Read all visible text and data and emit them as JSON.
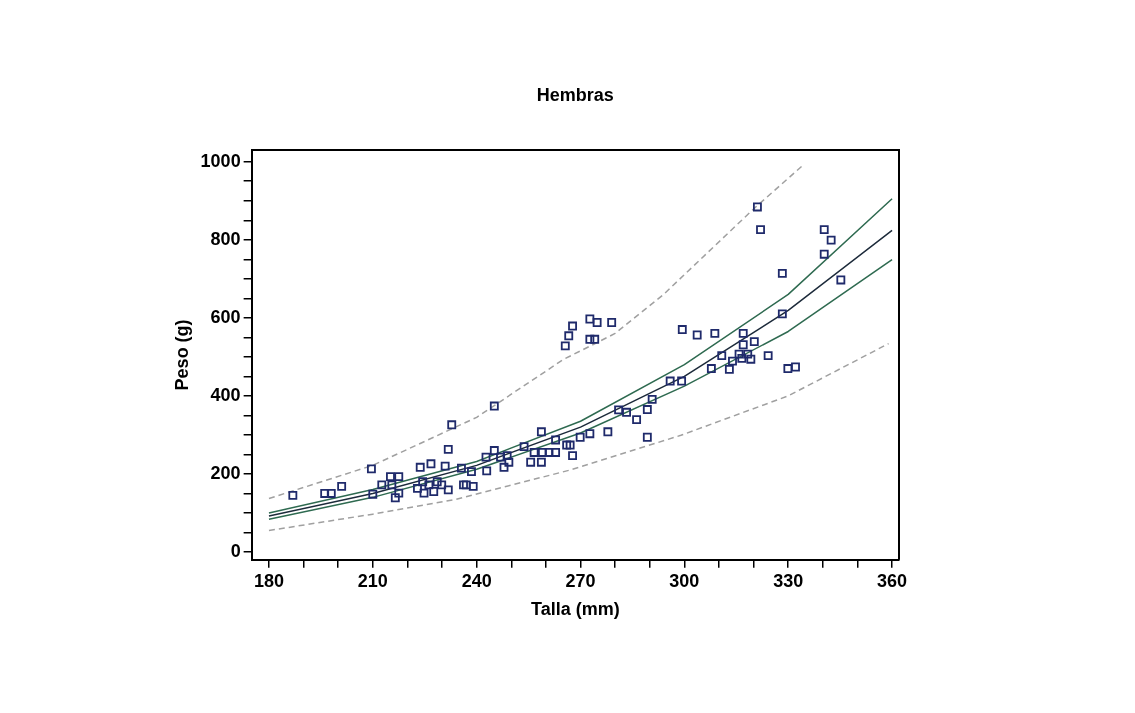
{
  "chart_data": {
    "type": "scatter",
    "title": "Hembras",
    "xlabel": "Talla (mm)",
    "ylabel": "Peso (g)",
    "xlim": [
      175,
      362
    ],
    "ylim": [
      -20,
      1030
    ],
    "xticks": [
      180,
      {
        "value": 190,
        "label": null
      },
      {
        "value": 200,
        "label": null
      },
      210,
      {
        "value": 220,
        "label": null
      },
      {
        "value": 230,
        "label": null
      },
      240,
      {
        "value": 250,
        "label": null
      },
      {
        "value": 260,
        "label": null
      },
      270,
      {
        "value": 280,
        "label": null
      },
      {
        "value": 290,
        "label": null
      },
      300,
      {
        "value": 310,
        "label": null
      },
      {
        "value": 320,
        "label": null
      },
      330,
      {
        "value": 340,
        "label": null
      },
      {
        "value": 350,
        "label": null
      },
      360
    ],
    "yticks": [
      0,
      {
        "value": 50,
        "label": null
      },
      {
        "value": 100,
        "label": null
      },
      {
        "value": 150,
        "label": null
      },
      200,
      {
        "value": 250,
        "label": null
      },
      {
        "value": 300,
        "label": null
      },
      {
        "value": 350,
        "label": null
      },
      400,
      {
        "value": 450,
        "label": null
      },
      {
        "value": 500,
        "label": null
      },
      {
        "value": 550,
        "label": null
      },
      600,
      {
        "value": 650,
        "label": null
      },
      {
        "value": 700,
        "label": null
      },
      {
        "value": 750,
        "label": null
      },
      800,
      {
        "value": 850,
        "label": null
      },
      {
        "value": 900,
        "label": null
      },
      {
        "value": 950,
        "label": null
      },
      1000
    ],
    "grid": false,
    "legend": false,
    "series": [
      {
        "type": "line",
        "color": "#a0a0a0",
        "line_style": "dashed",
        "marker": "none",
        "x": [
          180,
          210,
          240,
          265,
          280,
          294,
          320,
          334
        ],
        "values": [
          137,
          222,
          345,
          493,
          560,
          660,
          879,
          989
        ]
      },
      {
        "type": "line",
        "color": "#a0a0a0",
        "line_style": "dashed",
        "marker": "none",
        "x": [
          180,
          210,
          234,
          267,
          299,
          330,
          359
        ],
        "values": [
          55,
          97,
          135,
          210,
          299,
          400,
          534
        ]
      },
      {
        "type": "line",
        "color": "#2e6a50",
        "line_style": "solid",
        "marker": "none",
        "x": [
          180,
          210,
          240,
          270,
          300,
          330,
          360
        ],
        "values": [
          100,
          160,
          232,
          335,
          480,
          660,
          905
        ]
      },
      {
        "type": "line",
        "color": "#1c2a3a",
        "line_style": "solid",
        "marker": "none",
        "x": [
          180,
          210,
          240,
          270,
          300,
          330,
          360
        ],
        "values": [
          92,
          150,
          222,
          320,
          450,
          619,
          824
        ]
      },
      {
        "type": "line",
        "color": "#2e6a50",
        "line_style": "solid",
        "marker": "none",
        "x": [
          180,
          210,
          240,
          270,
          300,
          330,
          360
        ],
        "values": [
          84,
          140,
          212,
          305,
          425,
          565,
          749
        ]
      },
      {
        "color": "#1f2a6b",
        "marker": "square",
        "x": [
          186.9,
          196.1,
          198,
          201,
          209.6,
          210,
          212.6,
          215.1,
          217.5,
          215.5,
          216.5,
          217.5,
          222.9,
          224.8,
          226.2,
          227.6,
          228.6,
          224.4,
          223.7,
          226.8,
          231.8,
          232.8,
          230.9,
          229.9,
          231.8,
          236.2,
          235.6,
          238.5,
          237,
          239,
          242.9,
          242.7,
          245.1,
          245.1,
          246.9,
          247.9,
          249.3,
          248.8,
          253.7,
          255.6,
          258.7,
          258.7,
          256.6,
          259,
          260.9,
          262.8,
          262.8,
          266,
          267,
          267.7,
          265.6,
          266.6,
          267.7,
          272.7,
          274.8,
          272.7,
          274.1,
          279,
          269.9,
          272.7,
          277.9,
          281,
          283.3,
          286.2,
          289.3,
          290.7,
          289.3,
          295.9,
          299.2,
          299.4,
          303.7,
          308.8,
          307.8,
          310.8,
          313,
          313.9,
          315.8,
          317,
          317,
          318.3,
          316.6,
          319.2,
          320.2,
          324.2,
          321.1,
          322,
          328.3,
          328.3,
          329.9,
          332.1,
          340.4,
          342.4,
          340.4,
          345.2
        ],
        "values": [
          145,
          150,
          150,
          168,
          213,
          148,
          172,
          193,
          193,
          172,
          139,
          151,
          163,
          151,
          172,
          155,
          180,
          180,
          217,
          226,
          263,
          326,
          220,
          172,
          159,
          172,
          215,
          206,
          172,
          168,
          208,
          243,
          260,
          374,
          243,
          217,
          230,
          247,
          270,
          230,
          230,
          308,
          255,
          255,
          255,
          255,
          287,
          274,
          274,
          247,
          528,
          554,
          579,
          597,
          588,
          545,
          545,
          588,
          294,
          303,
          308,
          364,
          358,
          339,
          365,
          391,
          294,
          438,
          438,
          570,
          556,
          560,
          470,
          503,
          468,
          489,
          507,
          560,
          531,
          507,
          496,
          494,
          539,
          503,
          884,
          826,
          714,
          610,
          470,
          474,
          826,
          799,
          763,
          697
        ]
      }
    ]
  }
}
